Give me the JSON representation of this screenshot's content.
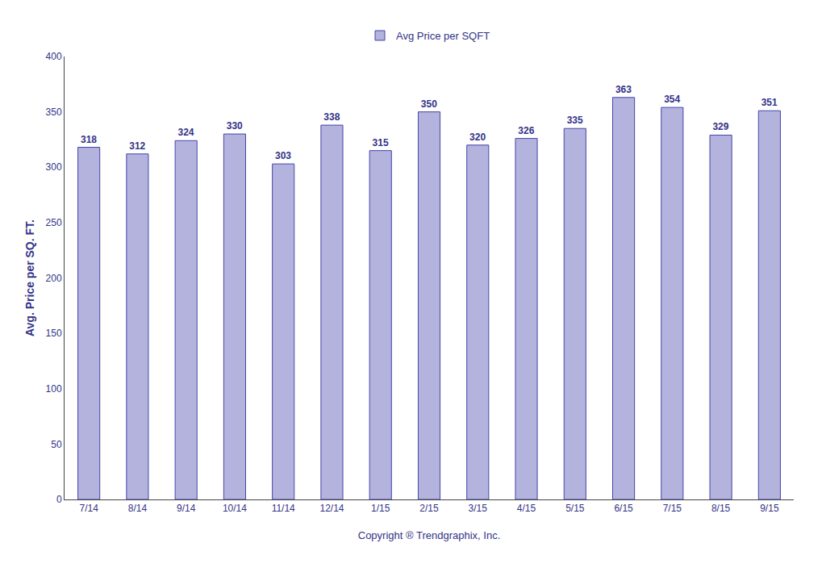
{
  "chart_data": {
    "type": "bar",
    "xlabel": "Copyright ® Trendgraphix, Inc.",
    "ylabel": "Avg. Price per SQ. FT.",
    "categories": [
      "7/14",
      "8/14",
      "9/14",
      "10/14",
      "11/14",
      "12/14",
      "1/15",
      "2/15",
      "3/15",
      "4/15",
      "5/15",
      "6/15",
      "7/15",
      "8/15",
      "9/15"
    ],
    "series": [
      {
        "name": "Avg Price per SQFT",
        "color": "#b3b3dd",
        "values": [
          318,
          312,
          324,
          330,
          303,
          338,
          315,
          350,
          320,
          326,
          335,
          363,
          354,
          329,
          351
        ]
      }
    ],
    "ylim": [
      0,
      400
    ],
    "yticks": [
      0,
      50,
      100,
      150,
      200,
      250,
      300,
      350,
      400
    ],
    "grid": false,
    "legend": "top",
    "data_labels": true
  }
}
